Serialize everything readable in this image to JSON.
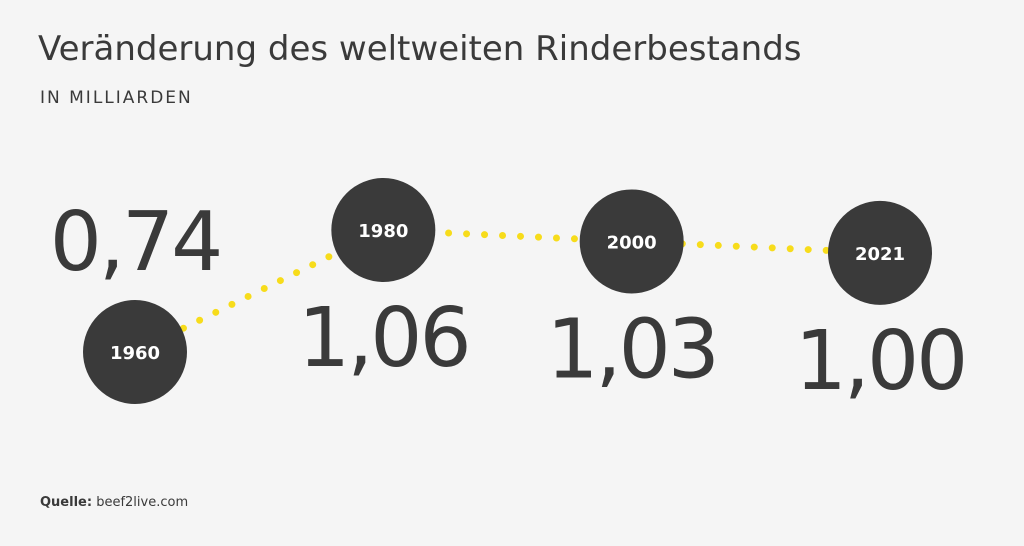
{
  "chart_data": {
    "type": "line",
    "title": "Veränderung des weltweiten Rinderbestands",
    "subtitle": "IN MILLIARDEN",
    "categories": [
      "1960",
      "1980",
      "2000",
      "2021"
    ],
    "values": [
      0.74,
      1.06,
      1.03,
      1.0
    ],
    "value_labels": [
      "0,74",
      "1,06",
      "1,03",
      "1,00"
    ],
    "color": "#f7dc1b",
    "marker_color": "#3a3a3a",
    "source_label": "Quelle:",
    "source": "beef2live.com"
  }
}
